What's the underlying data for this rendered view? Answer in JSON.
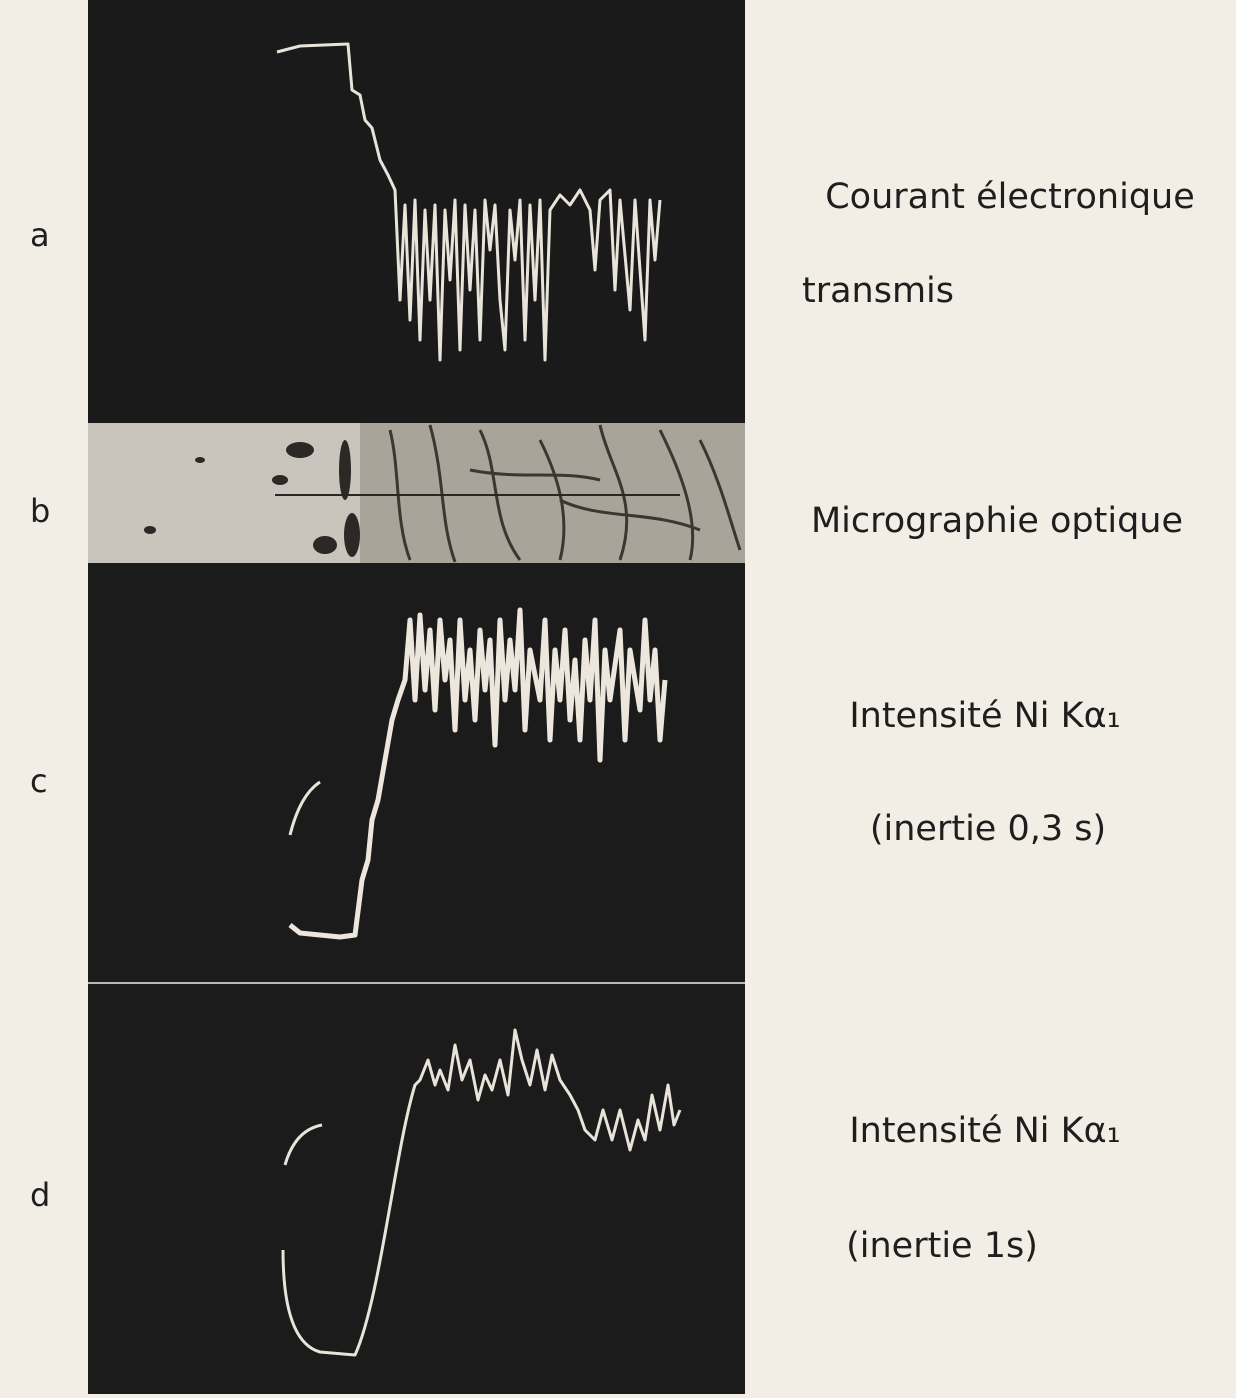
{
  "panels": [
    {
      "label": "a",
      "caption": [
        "Courant électronique",
        "transmis"
      ]
    },
    {
      "label": "b",
      "caption": [
        "Micrographie optique"
      ]
    },
    {
      "label": "c",
      "caption": [
        "Intensité Ni Kα₁",
        "(inertie 0,3 s)"
      ]
    },
    {
      "label": "d",
      "caption": [
        "Intensité Ni Kα₁",
        "(inertie 1s)"
      ]
    }
  ]
}
